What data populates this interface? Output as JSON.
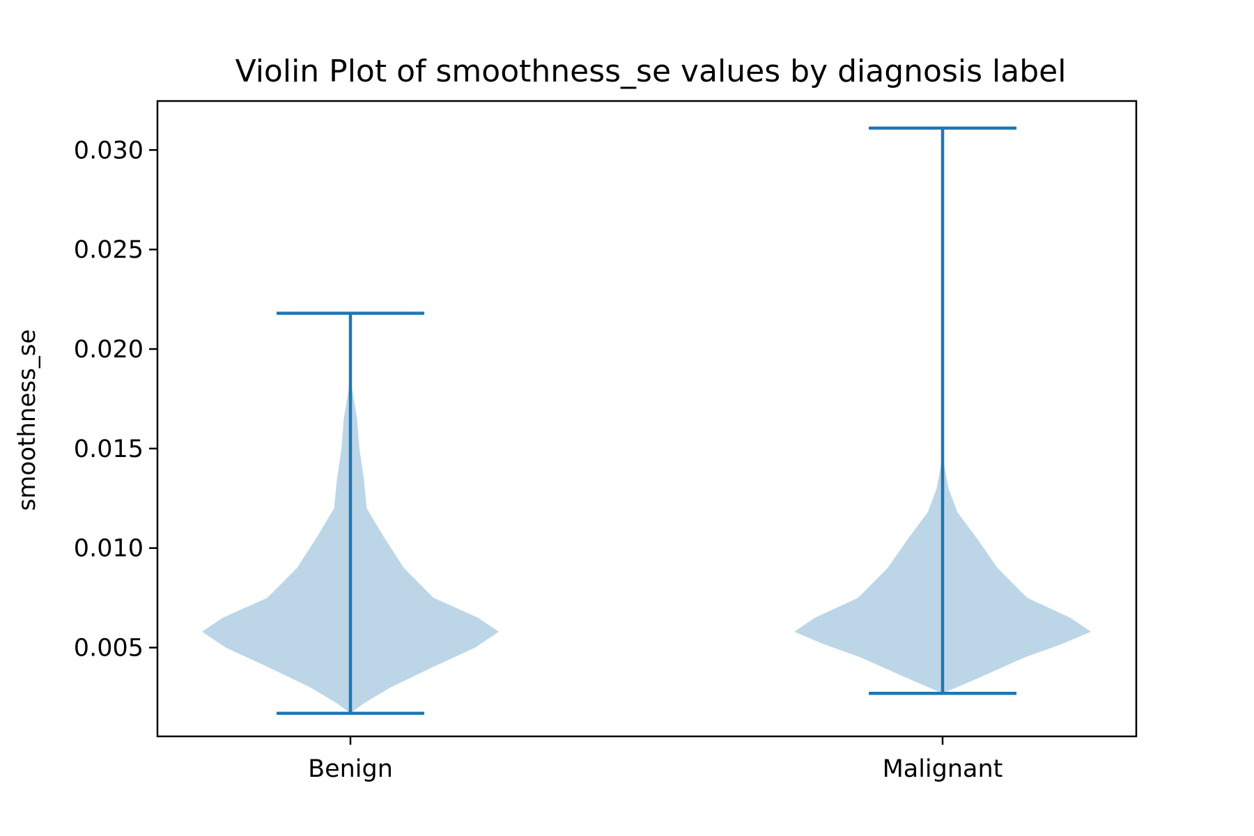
{
  "chart_data": {
    "type": "violin",
    "title": "Violin Plot of smoothness_se values by diagnosis label",
    "xlabel": "",
    "ylabel": "smoothness_se",
    "categories": [
      "Benign",
      "Malignant"
    ],
    "ylim": [
      0.00054,
      0.03246
    ],
    "yticks": [
      0.005,
      0.01,
      0.015,
      0.02,
      0.025,
      0.03
    ],
    "ytick_labels": [
      "0.005",
      "0.010",
      "0.015",
      "0.020",
      "0.025",
      "0.030"
    ],
    "grid": false,
    "colors": {
      "body": "#bcd6e8",
      "lines": "#1f77b4"
    },
    "violins": [
      {
        "name": "Benign",
        "min": 0.0017,
        "max": 0.0218,
        "density": [
          [
            0.0017,
            0.0
          ],
          [
            0.0022,
            0.09
          ],
          [
            0.003,
            0.27
          ],
          [
            0.004,
            0.55
          ],
          [
            0.005,
            0.84
          ],
          [
            0.0058,
            1.0
          ],
          [
            0.0065,
            0.86
          ],
          [
            0.0075,
            0.56
          ],
          [
            0.009,
            0.36
          ],
          [
            0.0105,
            0.23
          ],
          [
            0.012,
            0.11
          ],
          [
            0.0135,
            0.09
          ],
          [
            0.015,
            0.06
          ],
          [
            0.0165,
            0.045
          ],
          [
            0.0185,
            0.0
          ]
        ]
      },
      {
        "name": "Malignant",
        "min": 0.0027,
        "max": 0.0311,
        "density": [
          [
            0.0027,
            0.0
          ],
          [
            0.0035,
            0.25
          ],
          [
            0.0045,
            0.55
          ],
          [
            0.0052,
            0.81
          ],
          [
            0.0058,
            1.0
          ],
          [
            0.0065,
            0.86
          ],
          [
            0.0075,
            0.57
          ],
          [
            0.009,
            0.37
          ],
          [
            0.0105,
            0.23
          ],
          [
            0.0118,
            0.1
          ],
          [
            0.013,
            0.04
          ],
          [
            0.014,
            0.015
          ],
          [
            0.0147,
            0.0
          ]
        ]
      }
    ]
  }
}
